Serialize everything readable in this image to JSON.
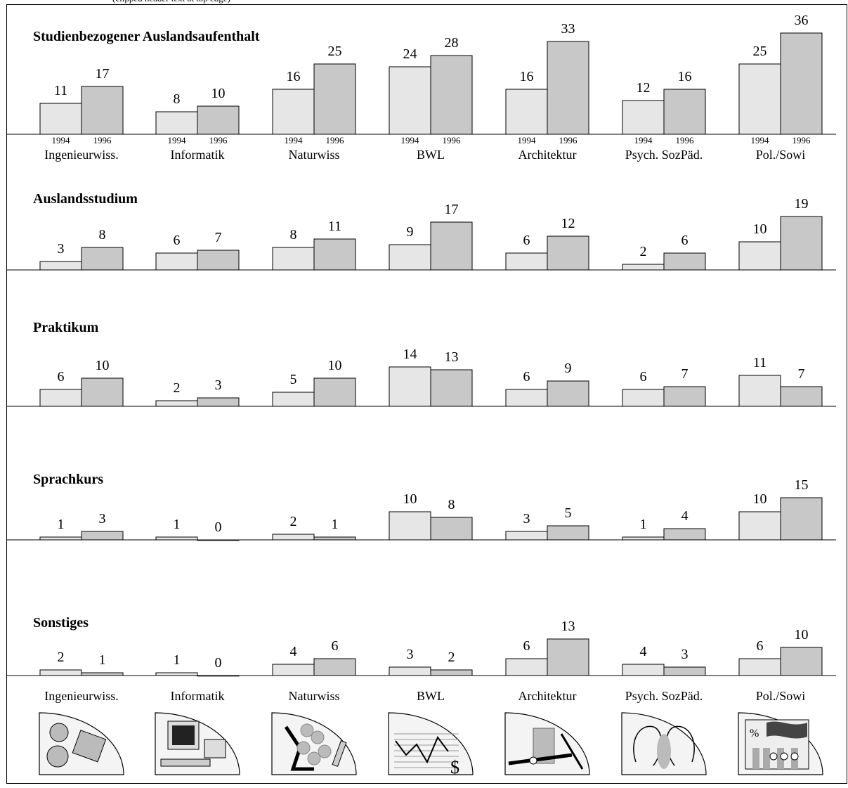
{
  "header_fragment": "(clipped header text at top edge)",
  "colors": {
    "bar_1994": "#e6e6e6",
    "bar_1996": "#c8c8c8",
    "stroke": "#000000"
  },
  "categories": [
    "Ingenieurwiss.",
    "Informatik",
    "Naturwiss",
    "BWL",
    "Architektur",
    "Psych. SozPäd.",
    "Pol./Sowi"
  ],
  "icons": [
    "gears-icon",
    "computer-icon",
    "microscope-icon",
    "chart-dollar-icon",
    "drafting-icon",
    "faces-icon",
    "flag-people-icon"
  ],
  "chart_data": [
    {
      "type": "bar",
      "title": "Studienbezogener Auslandsaufenthalt",
      "categories": [
        "Ingenieurwiss.",
        "Informatik",
        "Naturwiss",
        "BWL",
        "Architektur",
        "Psych. SozPäd.",
        "Pol./Sowi"
      ],
      "years": [
        "1994",
        "1996"
      ],
      "series": [
        {
          "name": "1994",
          "values": [
            11,
            8,
            16,
            24,
            16,
            12,
            25
          ]
        },
        {
          "name": "1996",
          "values": [
            17,
            10,
            25,
            28,
            33,
            16,
            36
          ]
        }
      ]
    },
    {
      "type": "bar",
      "title": "Auslandsstudium",
      "categories": [
        "Ingenieurwiss.",
        "Informatik",
        "Naturwiss",
        "BWL",
        "Architektur",
        "Psych. SozPäd.",
        "Pol./Sowi"
      ],
      "series": [
        {
          "name": "1994",
          "values": [
            3,
            6,
            8,
            9,
            6,
            2,
            10
          ]
        },
        {
          "name": "1996",
          "values": [
            8,
            7,
            11,
            17,
            12,
            6,
            19
          ]
        }
      ]
    },
    {
      "type": "bar",
      "title": "Praktikum",
      "categories": [
        "Ingenieurwiss.",
        "Informatik",
        "Naturwiss",
        "BWL",
        "Architektur",
        "Psych. SozPäd.",
        "Pol./Sowi"
      ],
      "series": [
        {
          "name": "1994",
          "values": [
            6,
            2,
            5,
            14,
            6,
            6,
            11
          ]
        },
        {
          "name": "1996",
          "values": [
            10,
            3,
            10,
            13,
            9,
            7,
            7
          ]
        }
      ]
    },
    {
      "type": "bar",
      "title": "Sprachkurs",
      "categories": [
        "Ingenieurwiss.",
        "Informatik",
        "Naturwiss",
        "BWL",
        "Architektur",
        "Psych. SozPäd.",
        "Pol./Sowi"
      ],
      "series": [
        {
          "name": "1994",
          "values": [
            1,
            1,
            2,
            10,
            3,
            1,
            10
          ]
        },
        {
          "name": "1996",
          "values": [
            3,
            0,
            1,
            8,
            5,
            4,
            15
          ]
        }
      ]
    },
    {
      "type": "bar",
      "title": "Sonstiges",
      "categories": [
        "Ingenieurwiss.",
        "Informatik",
        "Naturwiss",
        "BWL",
        "Architektur",
        "Psych. SozPäd.",
        "Pol./Sowi"
      ],
      "series": [
        {
          "name": "1994",
          "values": [
            2,
            1,
            4,
            3,
            6,
            4,
            6
          ]
        },
        {
          "name": "1996",
          "values": [
            1,
            0,
            6,
            2,
            13,
            3,
            10
          ]
        }
      ]
    }
  ]
}
